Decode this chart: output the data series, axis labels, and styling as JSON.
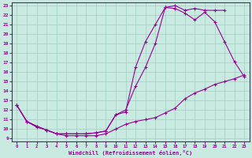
{
  "xlabel": "Windchill (Refroidissement éolien,°C)",
  "bg_color": "#c8eae0",
  "line_color": "#990099",
  "grid_color": "#a0cfc0",
  "xlim": [
    -0.5,
    23.5
  ],
  "ylim": [
    8.7,
    23.3
  ],
  "xticks": [
    0,
    1,
    2,
    3,
    4,
    5,
    6,
    7,
    8,
    9,
    10,
    11,
    12,
    13,
    14,
    15,
    16,
    17,
    18,
    19,
    20,
    21,
    22,
    23
  ],
  "yticks": [
    9,
    10,
    11,
    12,
    13,
    14,
    15,
    16,
    17,
    18,
    19,
    20,
    21,
    22,
    23
  ],
  "line1_x": [
    0,
    1,
    2,
    3,
    4,
    5,
    6,
    7,
    8,
    9,
    10,
    11,
    12,
    13,
    14,
    15,
    16,
    17,
    18,
    19,
    20,
    21,
    22,
    23
  ],
  "line1_y": [
    12.5,
    10.8,
    10.3,
    9.9,
    9.5,
    9.5,
    9.5,
    9.5,
    9.6,
    9.8,
    11.5,
    11.8,
    16.5,
    19.2,
    21.0,
    22.8,
    22.7,
    22.2,
    21.5,
    22.3,
    21.3,
    19.2,
    17.1,
    15.5
  ],
  "line2_x": [
    0,
    1,
    2,
    3,
    4,
    5,
    6,
    7,
    8,
    9,
    10,
    11,
    12,
    13,
    14,
    15,
    16,
    17,
    18,
    19,
    20,
    21
  ],
  "line2_y": [
    12.5,
    10.8,
    10.3,
    9.9,
    9.5,
    9.5,
    9.5,
    9.5,
    9.6,
    9.8,
    11.5,
    12.0,
    14.5,
    16.5,
    19.0,
    22.8,
    23.0,
    22.5,
    22.7,
    22.5,
    22.5,
    22.5
  ],
  "line3_x": [
    0,
    1,
    2,
    3,
    4,
    5,
    6,
    7,
    8,
    9,
    10,
    11,
    12,
    13,
    14,
    15,
    16,
    17,
    18,
    19,
    20,
    21,
    22,
    23
  ],
  "line3_y": [
    12.5,
    10.8,
    10.2,
    9.9,
    9.5,
    9.3,
    9.3,
    9.3,
    9.3,
    9.5,
    10.0,
    10.5,
    10.8,
    11.0,
    11.2,
    11.7,
    12.2,
    13.2,
    13.8,
    14.2,
    14.7,
    15.0,
    15.3,
    15.7
  ]
}
